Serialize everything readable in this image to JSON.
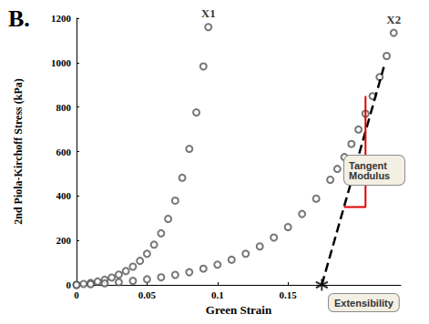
{
  "chart_data": {
    "type": "scatter",
    "title": "B.",
    "x_label": "Green Strain",
    "y_label": "2nd Piola-Kirchoff Stress (kPa)",
    "xlim": [
      0,
      0.23
    ],
    "xticks": [
      0,
      0.05,
      0.1,
      0.15
    ],
    "ylim": [
      0,
      1200
    ],
    "yticks": [
      0,
      200,
      400,
      600,
      800,
      1000,
      1200
    ],
    "grid": false,
    "annotations": [
      {
        "text": "Tangent Modulus"
      },
      {
        "text": "Extensibility"
      }
    ],
    "series": [
      {
        "name": "X1",
        "type": "scatter",
        "marker": "circle",
        "color": "#555555",
        "x": [
          0,
          0.005,
          0.01,
          0.015,
          0.02,
          0.025,
          0.03,
          0.035,
          0.04,
          0.045,
          0.05,
          0.055,
          0.06,
          0.065,
          0.07,
          0.075,
          0.08,
          0.085,
          0.09,
          0.0935
        ],
        "values": [
          0,
          4,
          9,
          15,
          23,
          33,
          46,
          62,
          82,
          108,
          140,
          181,
          232,
          297,
          379,
          482,
          612,
          776,
          983,
          1160
        ]
      },
      {
        "name": "X2",
        "type": "scatter",
        "marker": "circle",
        "color": "#555555",
        "x": [
          0,
          0.01,
          0.02,
          0.03,
          0.04,
          0.05,
          0.06,
          0.07,
          0.08,
          0.09,
          0.1,
          0.11,
          0.12,
          0.13,
          0.14,
          0.15,
          0.16,
          0.17,
          0.18,
          0.185,
          0.19,
          0.195,
          0.2,
          0.205,
          0.21,
          0.215,
          0.22,
          0.225
        ],
        "values": [
          0,
          3,
          7,
          12,
          18,
          25,
          34,
          45,
          57,
          73,
          91,
          113,
          140,
          173,
          213,
          260,
          319,
          388,
          473,
          522,
          575,
          634,
          699,
          770,
          849,
          935,
          1030,
          1134
        ]
      },
      {
        "type": "line",
        "line_style": "dashed",
        "color": "#000000",
        "x": [
          0.174,
          0.218
        ],
        "values": [
          0,
          980
        ]
      },
      {
        "type": "line",
        "line_style": "solid",
        "color": "#e00000",
        "x": [
          0.1897,
          0.205,
          0.205
        ],
        "values": [
          350,
          350,
          850
        ]
      },
      {
        "type": "scatter",
        "marker": "asterisk",
        "color": "#000000",
        "x": [
          0.174
        ],
        "values": [
          0
        ]
      }
    ]
  }
}
